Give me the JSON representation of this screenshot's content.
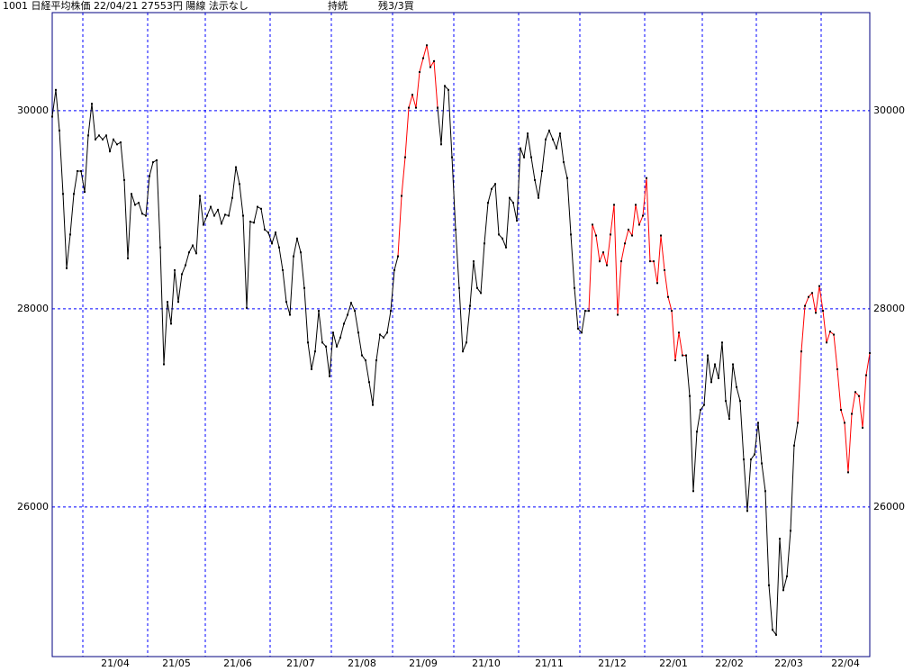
{
  "chart_data": {
    "type": "line",
    "title": "1001 日経平均株価 22/04/21 27553円 陽線 法示なし",
    "annotations": [
      "持続",
      "残3/3買"
    ],
    "ylim": [
      24490,
      30990
    ],
    "yticks": [
      26000,
      28000,
      30000
    ],
    "grid": true,
    "grid_color": "#0000ff",
    "border_color": "#000080",
    "marker_color": "#000000",
    "categories": [
      null,
      null,
      null,
      null,
      null,
      null,
      null,
      null,
      null,
      "21/04",
      null,
      null,
      null,
      null,
      null,
      null,
      null,
      null,
      null,
      null,
      null,
      null,
      null,
      null,
      null,
      null,
      null,
      "21/05",
      null,
      null,
      null,
      null,
      null,
      null,
      null,
      null,
      null,
      null,
      null,
      null,
      null,
      null,
      null,
      "21/06",
      null,
      null,
      null,
      null,
      null,
      null,
      null,
      null,
      null,
      null,
      null,
      null,
      null,
      null,
      null,
      null,
      null,
      "21/07",
      null,
      null,
      null,
      null,
      null,
      null,
      null,
      null,
      null,
      null,
      null,
      null,
      null,
      null,
      null,
      null,
      "21/08",
      null,
      null,
      null,
      null,
      null,
      null,
      null,
      null,
      null,
      null,
      null,
      null,
      null,
      null,
      null,
      null,
      "21/09",
      null,
      null,
      null,
      null,
      null,
      null,
      null,
      null,
      null,
      null,
      null,
      null,
      null,
      null,
      null,
      null,
      "21/10",
      null,
      null,
      null,
      null,
      null,
      null,
      null,
      null,
      null,
      null,
      null,
      null,
      null,
      null,
      null,
      null,
      null,
      "21/11",
      null,
      null,
      null,
      null,
      null,
      null,
      null,
      null,
      null,
      null,
      null,
      null,
      null,
      null,
      null,
      null,
      "21/12",
      null,
      null,
      null,
      null,
      null,
      null,
      null,
      null,
      null,
      null,
      null,
      null,
      null,
      null,
      null,
      null,
      null,
      "22/01",
      null,
      null,
      null,
      null,
      null,
      null,
      null,
      null,
      null,
      null,
      null,
      null,
      null,
      null,
      null,
      "22/02",
      null,
      null,
      null,
      null,
      null,
      null,
      null,
      null,
      null,
      null,
      null,
      null,
      null,
      null,
      "22/03",
      null,
      null,
      null,
      null,
      null,
      null,
      null,
      null,
      null,
      null,
      null,
      null,
      null,
      null,
      null,
      null,
      null,
      "22/04",
      null,
      null,
      null,
      null,
      null,
      null,
      null,
      null,
      null,
      null,
      null,
      null,
      null
    ],
    "series": [
      {
        "color": "#000000",
        "values": [
          29940,
          30210,
          29800,
          29160,
          28410,
          28750,
          29160,
          29390,
          29390,
          29180,
          29750,
          30070,
          29710,
          29750,
          29710,
          29750,
          29590,
          29710,
          29660,
          29680,
          29300,
          28510,
          29160,
          29050,
          29070,
          28960,
          28940,
          29340,
          29480,
          29500,
          28620,
          27440,
          28070,
          27850,
          28390,
          28070,
          28350,
          28440,
          28570,
          28640,
          28560,
          29140,
          28850,
          28940,
          29030,
          28940,
          29000,
          28860,
          28950,
          28940,
          29120,
          29430,
          29260,
          28940,
          28010,
          28880,
          28870,
          29030,
          29010,
          28800,
          28770,
          28660,
          28770,
          28620,
          28390,
          28070,
          27940,
          28530,
          28710,
          28570,
          28210,
          27660,
          27390,
          27570,
          27980,
          27660,
          27620,
          27320,
          27760,
          27620,
          27710,
          27850,
          27940,
          28060,
          27980,
          27760,
          27530,
          27480,
          27260,
          27030,
          27480,
          27740,
          27710,
          27760,
          27980,
          28390,
          28530,
          null,
          null,
          null,
          null,
          null,
          null,
          null,
          null,
          null,
          null,
          30030,
          29660,
          30250,
          30210,
          29530,
          28800,
          28210,
          27570,
          27660,
          28030,
          28480,
          28210,
          28160,
          28660,
          29070,
          29210,
          29260,
          28750,
          28710,
          28620,
          29120,
          29070,
          28890,
          29620,
          29530,
          29770,
          29530,
          29300,
          29120,
          29390,
          29710,
          29800,
          29710,
          29620,
          29770,
          29480,
          29320,
          28750,
          28210,
          27800,
          27760,
          27980,
          27980,
          null,
          null,
          null,
          null,
          null,
          null,
          null,
          null,
          null,
          null,
          null,
          null,
          null,
          null,
          null,
          null,
          null,
          null,
          null,
          null,
          null,
          null,
          null,
          null,
          null,
          null,
          27530,
          27120,
          26160,
          26760,
          26980,
          27030,
          27530,
          27260,
          27440,
          27300,
          27660,
          27070,
          26890,
          27440,
          27210,
          27070,
          26480,
          25960,
          26480,
          26530,
          26850,
          26440,
          26160,
          25210,
          24760,
          24710,
          25680,
          25160,
          25300,
          25760,
          26620,
          26850,
          null,
          null,
          null,
          null,
          null,
          null,
          null,
          null,
          null,
          null,
          null,
          null,
          null,
          null,
          null,
          null,
          null,
          null,
          null,
          null
        ]
      },
      {
        "color": "#ff0000",
        "values": [
          null,
          null,
          null,
          null,
          null,
          null,
          null,
          null,
          null,
          null,
          null,
          null,
          null,
          null,
          null,
          null,
          null,
          null,
          null,
          null,
          null,
          null,
          null,
          null,
          null,
          null,
          null,
          null,
          null,
          null,
          null,
          null,
          null,
          null,
          null,
          null,
          null,
          null,
          null,
          null,
          null,
          null,
          null,
          null,
          null,
          null,
          null,
          null,
          null,
          null,
          null,
          null,
          null,
          null,
          null,
          null,
          null,
          null,
          null,
          null,
          null,
          null,
          null,
          null,
          null,
          null,
          null,
          null,
          null,
          null,
          null,
          null,
          null,
          null,
          null,
          null,
          null,
          null,
          null,
          null,
          null,
          null,
          null,
          null,
          null,
          null,
          null,
          null,
          null,
          null,
          null,
          null,
          null,
          null,
          null,
          null,
          28530,
          29140,
          29530,
          30030,
          30160,
          30030,
          30390,
          30530,
          30660,
          30440,
          30500,
          30030,
          null,
          null,
          null,
          null,
          null,
          null,
          null,
          null,
          null,
          null,
          null,
          null,
          null,
          null,
          null,
          null,
          null,
          null,
          null,
          null,
          null,
          null,
          null,
          null,
          null,
          null,
          null,
          null,
          null,
          null,
          null,
          null,
          null,
          null,
          null,
          null,
          null,
          null,
          null,
          null,
          null,
          27980,
          28850,
          28740,
          28480,
          28570,
          28440,
          28750,
          29050,
          27940,
          28480,
          28660,
          28800,
          28740,
          29050,
          28850,
          28940,
          29320,
          28480,
          28480,
          28260,
          28740,
          28390,
          28120,
          27980,
          27480,
          27760,
          27530,
          27530,
          null,
          null,
          null,
          null,
          null,
          null,
          null,
          null,
          null,
          null,
          null,
          null,
          null,
          null,
          null,
          null,
          null,
          null,
          null,
          null,
          null,
          null,
          null,
          null,
          null,
          null,
          null,
          null,
          null,
          null,
          26850,
          27570,
          28030,
          28120,
          28160,
          27960,
          28230,
          27980,
          27660,
          27770,
          27740,
          27390,
          26980,
          26850,
          26350,
          26940,
          27160,
          27120,
          26800,
          27330,
          27553
        ]
      }
    ]
  }
}
